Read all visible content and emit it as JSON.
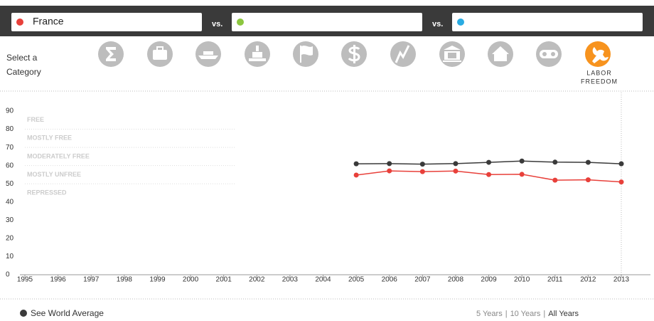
{
  "header": {
    "country_inputs": [
      "France",
      "",
      ""
    ],
    "vs_label": "vs."
  },
  "category_selector": {
    "prompt_lines": [
      "Select a",
      "Category"
    ],
    "active_label_lines": [
      "LABOR",
      "FREEDOM"
    ]
  },
  "chart_data": {
    "type": "line",
    "x": [
      2005,
      2006,
      2007,
      2008,
      2009,
      2010,
      2011,
      2012,
      2013
    ],
    "xlim": [
      1995,
      2013
    ],
    "xticks": [
      1995,
      1996,
      1997,
      1998,
      1999,
      2000,
      2001,
      2002,
      2003,
      2004,
      2005,
      2006,
      2007,
      2008,
      2009,
      2010,
      2011,
      2012,
      2013
    ],
    "ylim": [
      0,
      90
    ],
    "yticks": [
      0,
      10,
      20,
      30,
      40,
      50,
      60,
      70,
      80,
      90
    ],
    "zones": [
      {
        "label": "FREE",
        "min": 80
      },
      {
        "label": "MOSTLY FREE",
        "min": 70
      },
      {
        "label": "MODERATELY FREE",
        "min": 60
      },
      {
        "label": "MOSTLY UNFREE",
        "min": 50
      },
      {
        "label": "REPRESSED",
        "min": 0
      }
    ],
    "series": [
      {
        "name": "See World Average",
        "color": "#3a3a3a",
        "values": [
          61.0,
          61.1,
          60.8,
          61.1,
          61.8,
          62.5,
          61.9,
          61.8,
          61.0
        ]
      },
      {
        "name": "France",
        "color": "#e8403a",
        "values": [
          54.8,
          57.1,
          56.7,
          57.0,
          55.1,
          55.2,
          52.0,
          52.2,
          51.0
        ]
      }
    ]
  },
  "footer": {
    "range_options": [
      "5 Years",
      "10 Years",
      "All Years"
    ],
    "separator": "|"
  }
}
